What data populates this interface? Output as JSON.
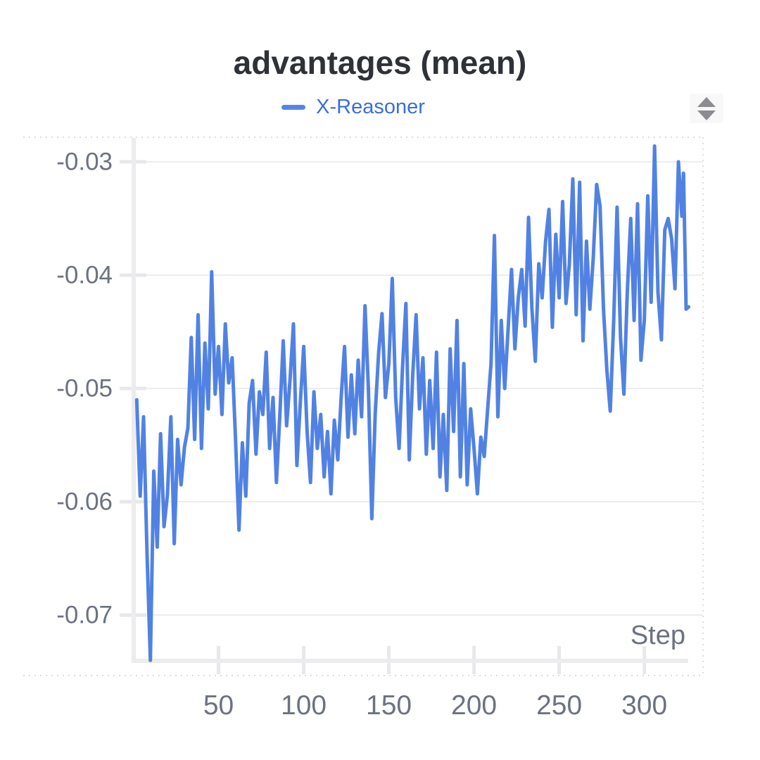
{
  "panel": {
    "sort_icon": "up-down-sort-arrows"
  },
  "colors": {
    "background": "#ffffff",
    "line": "#5182e3",
    "legend_text": "#3a6ed8",
    "title_text": "#2e3238",
    "tick_label_text": "#6b7280",
    "gridline": "#ededf0",
    "axis_bar": "#ececef",
    "tick_mark": "#e8e8eb",
    "dashed_border": "#dddde1",
    "icon_bg": "#f8f8f9",
    "icon_fg": "#8c8c90"
  },
  "chart_data": {
    "type": "line",
    "title": "advantages (mean)",
    "xlabel": "Step",
    "ylabel": "",
    "grid": true,
    "legend_position": "top-center",
    "xlim": [
      0,
      328
    ],
    "ylim": [
      -0.0742,
      -0.0279
    ],
    "x_ticks": [
      50,
      100,
      150,
      200,
      250,
      300
    ],
    "x_tick_labels": [
      "50",
      "100",
      "150",
      "200",
      "250",
      "300"
    ],
    "y_ticks": [
      -0.03,
      -0.04,
      -0.05,
      -0.06,
      -0.07
    ],
    "y_tick_labels": [
      "-0.03",
      "-0.04",
      "-0.05",
      "-0.06",
      "-0.07"
    ],
    "series": [
      {
        "name": "X-Reasoner",
        "color": "#5182e3",
        "points": [
          [
            2,
            -0.051
          ],
          [
            4,
            -0.0595
          ],
          [
            6,
            -0.0525
          ],
          [
            8,
            -0.0645
          ],
          [
            10,
            -0.074
          ],
          [
            12,
            -0.0573
          ],
          [
            14,
            -0.064
          ],
          [
            16,
            -0.054
          ],
          [
            18,
            -0.0622
          ],
          [
            20,
            -0.0594
          ],
          [
            22,
            -0.0525
          ],
          [
            24,
            -0.0637
          ],
          [
            26,
            -0.0545
          ],
          [
            28,
            -0.0585
          ],
          [
            30,
            -0.0552
          ],
          [
            32,
            -0.0535
          ],
          [
            34,
            -0.0455
          ],
          [
            36,
            -0.0545
          ],
          [
            38,
            -0.0435
          ],
          [
            40,
            -0.0553
          ],
          [
            42,
            -0.046
          ],
          [
            44,
            -0.0518
          ],
          [
            46,
            -0.0397
          ],
          [
            48,
            -0.0505
          ],
          [
            50,
            -0.0463
          ],
          [
            52,
            -0.0523
          ],
          [
            54,
            -0.0443
          ],
          [
            56,
            -0.0495
          ],
          [
            58,
            -0.0473
          ],
          [
            60,
            -0.0545
          ],
          [
            62,
            -0.0625
          ],
          [
            64,
            -0.0548
          ],
          [
            66,
            -0.0595
          ],
          [
            68,
            -0.0513
          ],
          [
            70,
            -0.0493
          ],
          [
            72,
            -0.0558
          ],
          [
            74,
            -0.0503
          ],
          [
            76,
            -0.0523
          ],
          [
            78,
            -0.0468
          ],
          [
            80,
            -0.0553
          ],
          [
            82,
            -0.0508
          ],
          [
            84,
            -0.0583
          ],
          [
            86,
            -0.0523
          ],
          [
            88,
            -0.0458
          ],
          [
            90,
            -0.0533
          ],
          [
            92,
            -0.0492
          ],
          [
            94,
            -0.0443
          ],
          [
            96,
            -0.0568
          ],
          [
            98,
            -0.0513
          ],
          [
            100,
            -0.0463
          ],
          [
            102,
            -0.0538
          ],
          [
            104,
            -0.0583
          ],
          [
            106,
            -0.0503
          ],
          [
            108,
            -0.0553
          ],
          [
            110,
            -0.0523
          ],
          [
            112,
            -0.0578
          ],
          [
            114,
            -0.0538
          ],
          [
            116,
            -0.0593
          ],
          [
            118,
            -0.0528
          ],
          [
            120,
            -0.0563
          ],
          [
            122,
            -0.0508
          ],
          [
            124,
            -0.0463
          ],
          [
            126,
            -0.0543
          ],
          [
            128,
            -0.0488
          ],
          [
            130,
            -0.054
          ],
          [
            132,
            -0.0475
          ],
          [
            134,
            -0.0525
          ],
          [
            136,
            -0.0427
          ],
          [
            138,
            -0.05
          ],
          [
            140,
            -0.0615
          ],
          [
            142,
            -0.0522
          ],
          [
            144,
            -0.0468
          ],
          [
            146,
            -0.0434
          ],
          [
            148,
            -0.0508
          ],
          [
            150,
            -0.0478
          ],
          [
            152,
            -0.0403
          ],
          [
            154,
            -0.0508
          ],
          [
            156,
            -0.0553
          ],
          [
            158,
            -0.0483
          ],
          [
            160,
            -0.0425
          ],
          [
            162,
            -0.0563
          ],
          [
            164,
            -0.0488
          ],
          [
            166,
            -0.0435
          ],
          [
            168,
            -0.0518
          ],
          [
            170,
            -0.0473
          ],
          [
            172,
            -0.0558
          ],
          [
            174,
            -0.0493
          ],
          [
            176,
            -0.0553
          ],
          [
            178,
            -0.0468
          ],
          [
            180,
            -0.0578
          ],
          [
            182,
            -0.0523
          ],
          [
            184,
            -0.059
          ],
          [
            186,
            -0.0465
          ],
          [
            188,
            -0.0538
          ],
          [
            190,
            -0.044
          ],
          [
            192,
            -0.0578
          ],
          [
            194,
            -0.0478
          ],
          [
            196,
            -0.0585
          ],
          [
            198,
            -0.0518
          ],
          [
            200,
            -0.0553
          ],
          [
            202,
            -0.0593
          ],
          [
            204,
            -0.0543
          ],
          [
            206,
            -0.056
          ],
          [
            208,
            -0.0518
          ],
          [
            210,
            -0.0478
          ],
          [
            212,
            -0.0365
          ],
          [
            214,
            -0.0525
          ],
          [
            216,
            -0.044
          ],
          [
            218,
            -0.05
          ],
          [
            220,
            -0.0448
          ],
          [
            222,
            -0.0395
          ],
          [
            224,
            -0.0465
          ],
          [
            226,
            -0.042
          ],
          [
            228,
            -0.0395
          ],
          [
            230,
            -0.0445
          ],
          [
            232,
            -0.0349
          ],
          [
            234,
            -0.043
          ],
          [
            236,
            -0.0476
          ],
          [
            238,
            -0.039
          ],
          [
            240,
            -0.042
          ],
          [
            242,
            -0.037
          ],
          [
            244,
            -0.0342
          ],
          [
            246,
            -0.0446
          ],
          [
            248,
            -0.0364
          ],
          [
            250,
            -0.042
          ],
          [
            252,
            -0.0335
          ],
          [
            254,
            -0.0425
          ],
          [
            256,
            -0.039
          ],
          [
            258,
            -0.0315
          ],
          [
            260,
            -0.0435
          ],
          [
            262,
            -0.0318
          ],
          [
            264,
            -0.0458
          ],
          [
            266,
            -0.037
          ],
          [
            268,
            -0.043
          ],
          [
            270,
            -0.0385
          ],
          [
            272,
            -0.032
          ],
          [
            274,
            -0.0339
          ],
          [
            276,
            -0.043
          ],
          [
            278,
            -0.0484
          ],
          [
            280,
            -0.052
          ],
          [
            282,
            -0.044
          ],
          [
            284,
            -0.034
          ],
          [
            286,
            -0.0455
          ],
          [
            288,
            -0.0505
          ],
          [
            290,
            -0.0415
          ],
          [
            292,
            -0.035
          ],
          [
            294,
            -0.044
          ],
          [
            296,
            -0.0337
          ],
          [
            298,
            -0.0475
          ],
          [
            300,
            -0.044
          ],
          [
            302,
            -0.033
          ],
          [
            304,
            -0.0424
          ],
          [
            306,
            -0.0286
          ],
          [
            308,
            -0.0415
          ],
          [
            310,
            -0.0457
          ],
          [
            312,
            -0.036
          ],
          [
            314,
            -0.035
          ],
          [
            316,
            -0.0368
          ],
          [
            318,
            -0.0412
          ],
          [
            320,
            -0.03
          ],
          [
            322,
            -0.0348
          ],
          [
            323,
            -0.031
          ],
          [
            324.5,
            -0.043
          ],
          [
            326,
            -0.0428
          ]
        ]
      }
    ]
  }
}
